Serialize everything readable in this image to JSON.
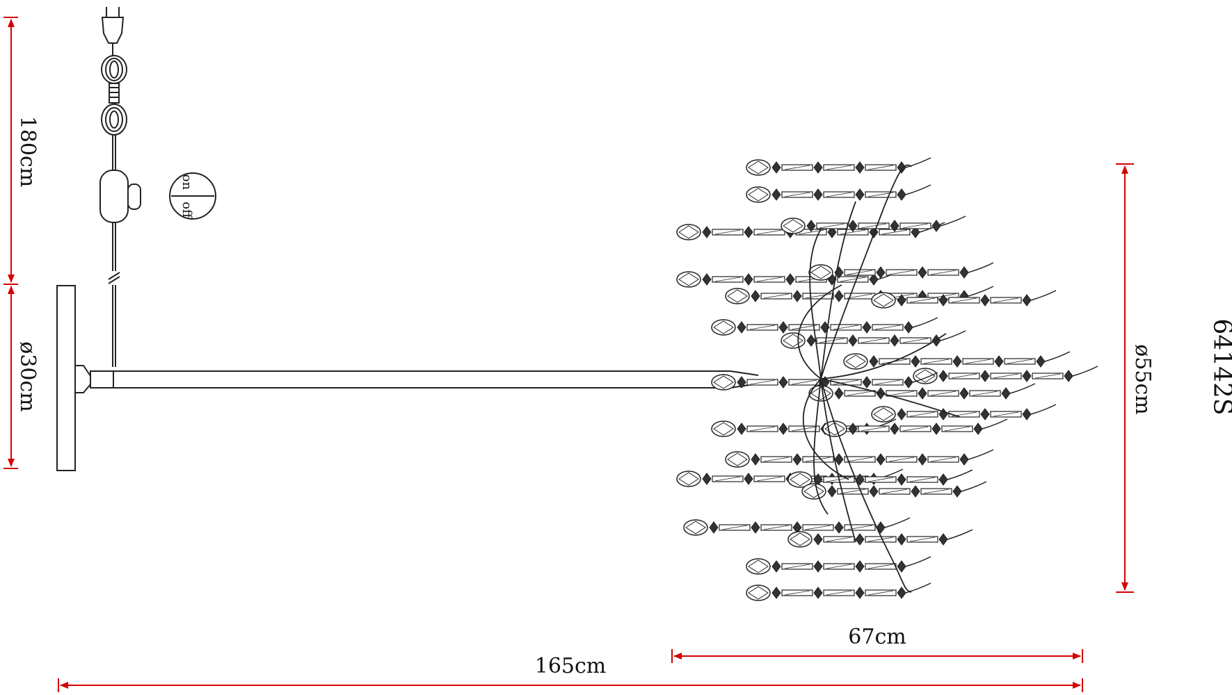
{
  "model_code": "64142S",
  "switch": {
    "on_label": "on",
    "off_label": "off"
  },
  "dimensions": {
    "cord_length": "180cm",
    "base_diameter": "ø30cm",
    "head_diameter": "ø55cm",
    "head_length": "67cm",
    "total_length": "165cm"
  },
  "colors": {
    "dimension_line": "#d40000",
    "drawing_line": "#222222",
    "background": "#ffffff"
  }
}
